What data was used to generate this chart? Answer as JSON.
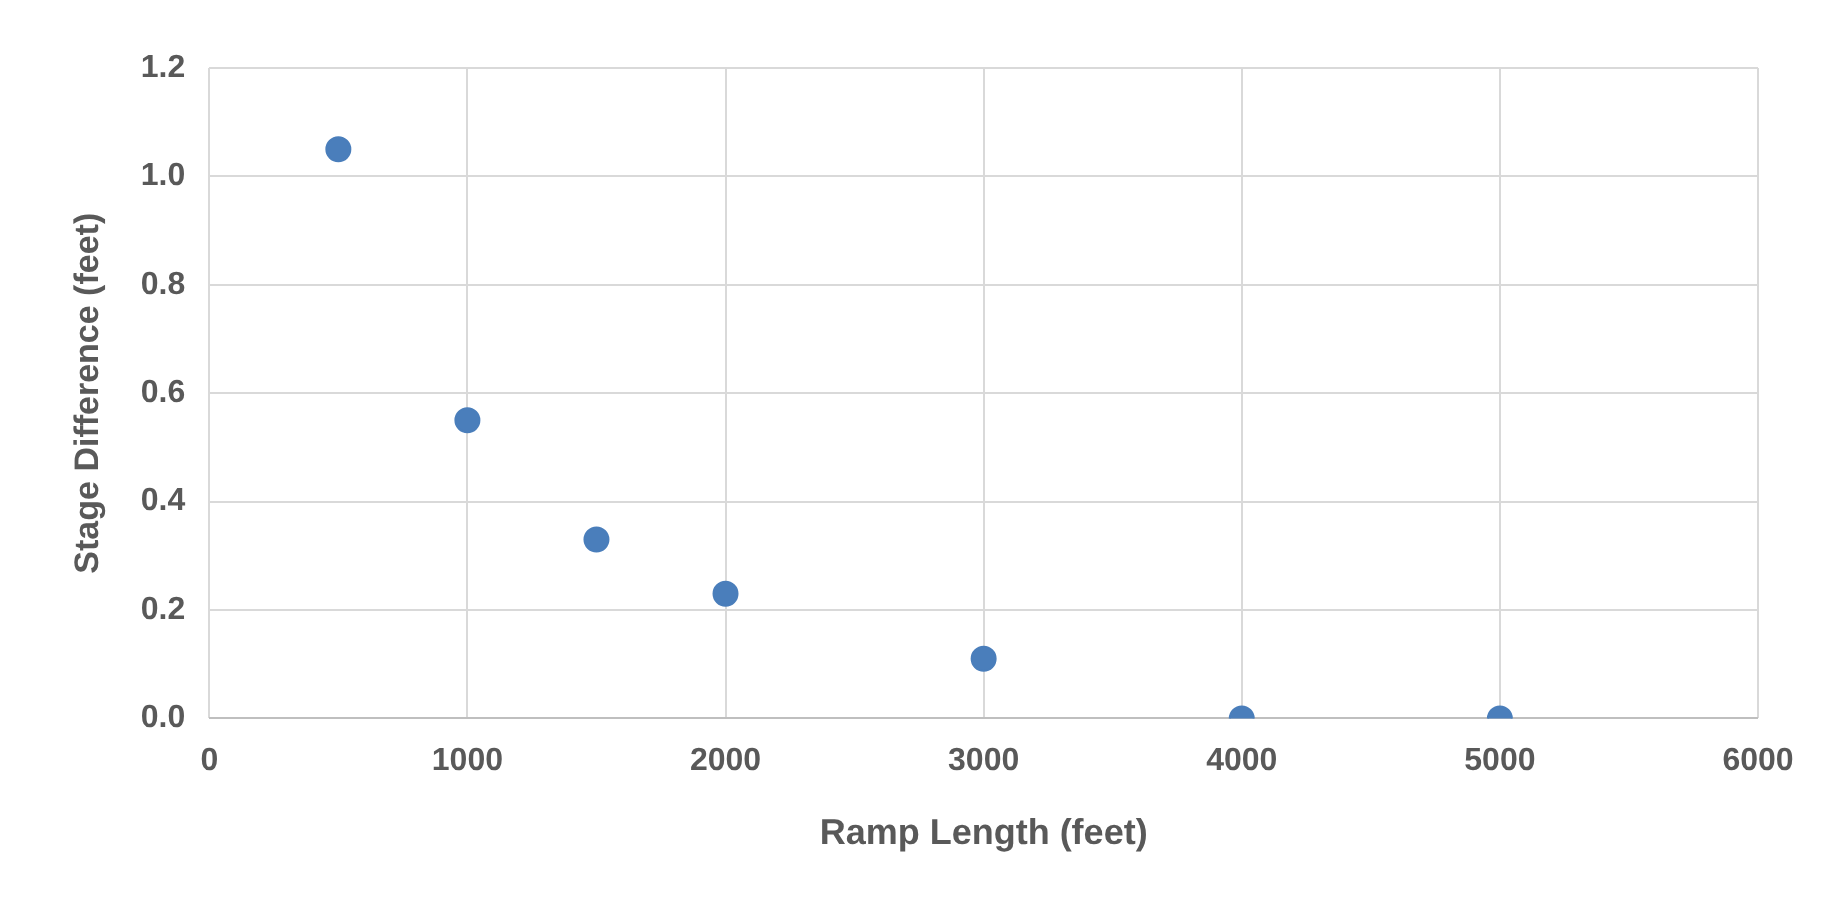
{
  "chart_data": {
    "type": "scatter",
    "xlabel": "Ramp Length (feet)",
    "ylabel": "Stage Difference (feet)",
    "x": [
      500,
      1000,
      1500,
      2000,
      3000,
      4000,
      5000
    ],
    "values": [
      1.05,
      0.55,
      0.33,
      0.23,
      0.11,
      0,
      0
    ],
    "color": "#4a7ebb",
    "xlim": [
      0,
      6000
    ],
    "xticks": [
      0,
      1000,
      2000,
      3000,
      4000,
      5000,
      6000
    ],
    "ylim": [
      0,
      1.2
    ],
    "yticks": [
      {
        "value": 0,
        "label": "0.0"
      },
      {
        "value": 0.2,
        "label": "0.2"
      },
      {
        "value": 0.4,
        "label": "0.4"
      },
      {
        "value": 0.6,
        "label": "0.6"
      },
      {
        "value": 0.8,
        "label": "0.8"
      },
      {
        "value": 1.0,
        "label": "1.0"
      },
      {
        "value": 1.2,
        "label": "1.2"
      }
    ],
    "grid": true,
    "marker": "circle",
    "legend": false
  }
}
